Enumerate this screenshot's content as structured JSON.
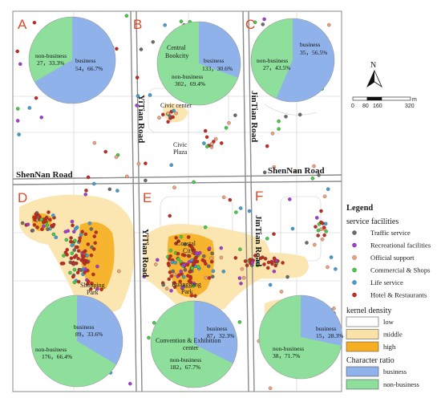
{
  "zones": [
    "A",
    "B",
    "C",
    "D",
    "E",
    "F"
  ],
  "roads": {
    "yitian_label": "YiTian Road",
    "jintian_label": "JinTian Road",
    "shennan_label": "ShenNan Road"
  },
  "places": {
    "central_bookcity_line1": "Central",
    "central_bookcity_line2": "Bookcity",
    "civic_center": "Civic center",
    "civic_plaza_line1": "Civic",
    "civic_plaza_line2": "Plaza",
    "coastal_line1": "Coastal",
    "coastal_line2": "City",
    "shopping_line1": "Shopping",
    "shopping_line2": "Park",
    "huanggang_line1": "Huanggang",
    "huanggang_line2": "Park",
    "convention_line1": "Convention & Exhibition",
    "convention_line2": "center"
  },
  "pies": [
    {
      "zone": "A",
      "business_label": "business",
      "business_value": "54，66.7%",
      "business_pct": 66.7,
      "nonbusiness_label": "non-business",
      "nonbusiness_value": "27，33.3%"
    },
    {
      "zone": "B",
      "business_label": "business",
      "business_value": "133，30.6%",
      "business_pct": 30.6,
      "nonbusiness_label": "non-business",
      "nonbusiness_value": "302，69.4%"
    },
    {
      "zone": "C",
      "business_label": "business",
      "business_value": "35，56.5%",
      "business_pct": 56.5,
      "nonbusiness_label": "non-business",
      "nonbusiness_value": "27，43.5%"
    },
    {
      "zone": "D",
      "business_label": "business",
      "business_value": "89，33.6%",
      "business_pct": 33.6,
      "nonbusiness_label": "non-business",
      "nonbusiness_value": "176，66.4%"
    },
    {
      "zone": "E",
      "business_label": "business",
      "business_value": "87，32.3%",
      "business_pct": 32.3,
      "nonbusiness_label": "non-business",
      "nonbusiness_value": "182，67.7%"
    },
    {
      "zone": "F",
      "business_label": "business",
      "business_value": "15，28.3%",
      "business_pct": 28.3,
      "nonbusiness_label": "non-business",
      "nonbusiness_value": "38，71.7%"
    }
  ],
  "north_arrow": {
    "label": "N"
  },
  "scale_bar": {
    "ticks": [
      "0",
      "80",
      "160",
      "320"
    ],
    "unit": "m"
  },
  "legend": {
    "title": "Legend",
    "service_heading": "service facilities",
    "services": [
      {
        "label": "Traffic service",
        "color": "#6b6b6b"
      },
      {
        "label": "Recreational facilities",
        "color": "#a63ad6"
      },
      {
        "label": "Official support",
        "color": "#f2a27a"
      },
      {
        "label": "Commercial & Shops",
        "color": "#3fcf3f"
      },
      {
        "label": "Life service",
        "color": "#3f9fd6"
      },
      {
        "label": "Hotel & Restaurants",
        "color": "#c8281e"
      }
    ],
    "kernel_heading": "kernel density",
    "kernel": [
      {
        "label": "low",
        "color": "#ffffff"
      },
      {
        "label": "middle",
        "color": "#fbe3a8"
      },
      {
        "label": "high",
        "color": "#f5ae21"
      }
    ],
    "ratio_heading": "Character ratio",
    "ratio": [
      {
        "label": "business",
        "color": "#8fb2ea"
      },
      {
        "label": "non-business",
        "color": "#8ddf9b"
      }
    ]
  },
  "colors": {
    "business": "#8fb2ea",
    "nonbusiness": "#8ddf9b",
    "kde_middle": "#fbe3a8",
    "kde_high": "#f5ae21",
    "zone_letter": "#e0492a",
    "road": "#8a8a8a"
  }
}
